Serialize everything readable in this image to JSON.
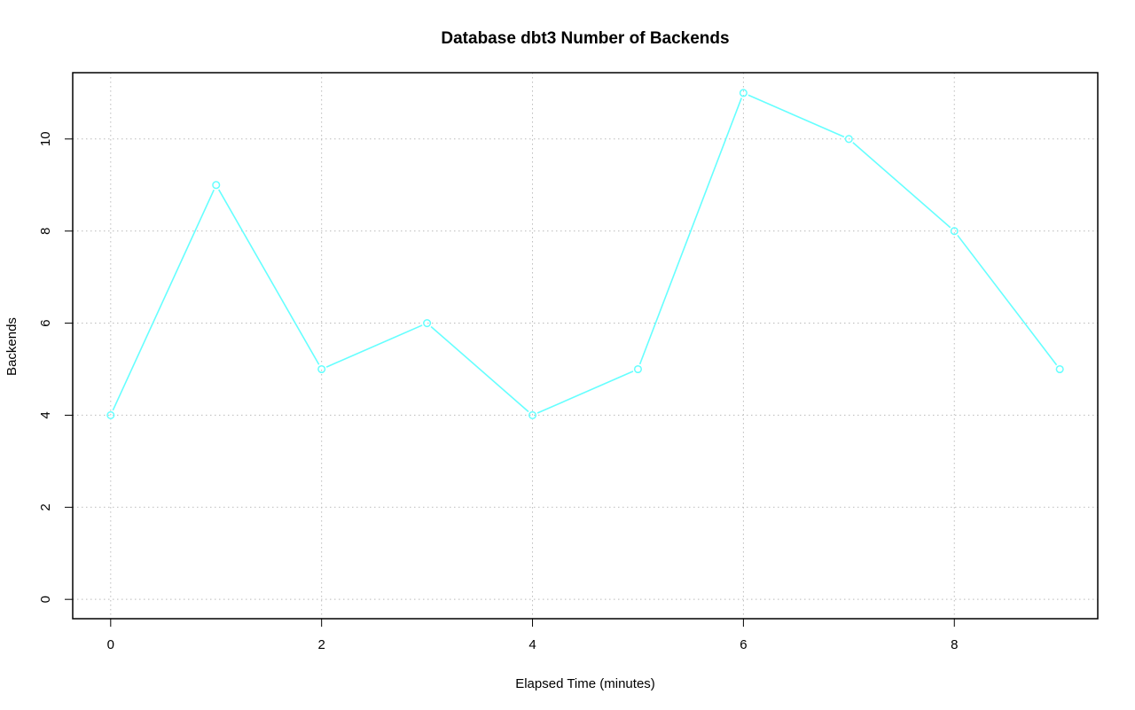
{
  "chart_data": {
    "type": "line",
    "title": "Database dbt3 Number of Backends",
    "xlabel": "Elapsed Time (minutes)",
    "ylabel": "Backends",
    "x": [
      0,
      1,
      2,
      3,
      4,
      5,
      6,
      7,
      8,
      9
    ],
    "series": [
      {
        "values": [
          4,
          9,
          5,
          6,
          4,
          5,
          11,
          10,
          8,
          5
        ],
        "color": "#66ffff"
      }
    ],
    "xlim": [
      -0.36,
      9.36
    ],
    "ylim": [
      -0.42,
      11.44
    ],
    "xticks": [
      0,
      2,
      4,
      6,
      8
    ],
    "yticks": [
      0,
      2,
      4,
      6,
      8,
      10
    ],
    "grid": true,
    "legend": "none"
  }
}
